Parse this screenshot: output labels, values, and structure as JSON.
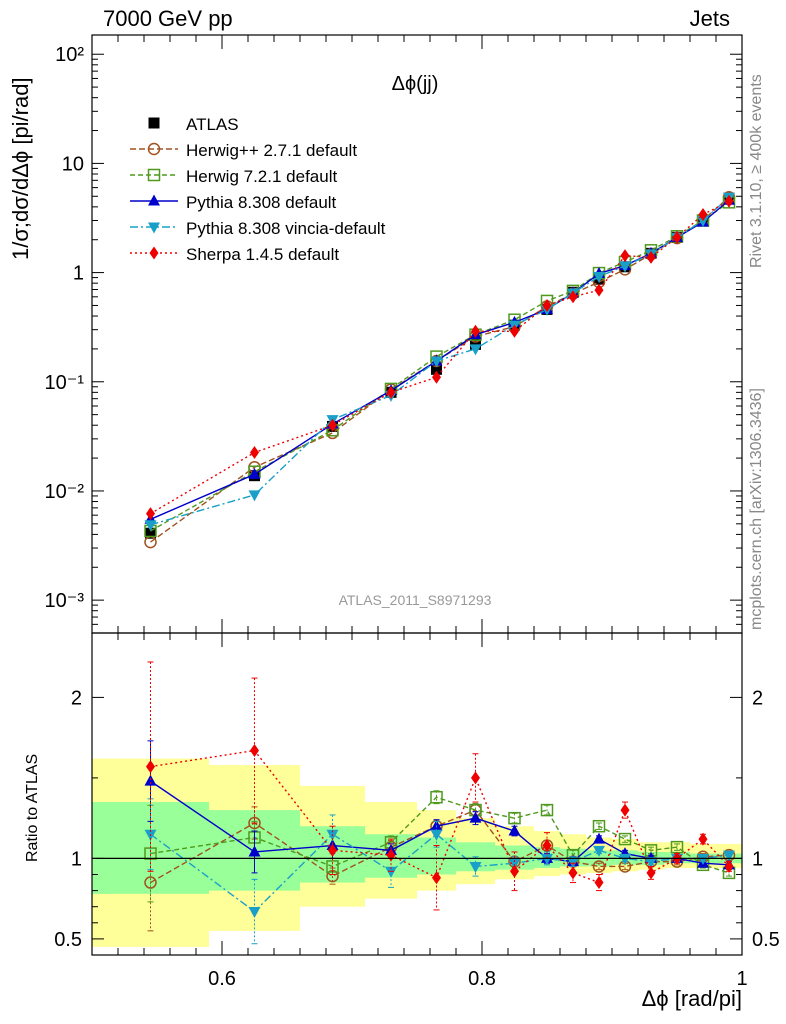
{
  "header": {
    "left": "7000 GeV pp",
    "right": "Jets"
  },
  "side_labels": {
    "top": "Rivet 3.1.10, ≥ 400k events",
    "bottom": "mcplots.cern.ch [arXiv:1306.3436]"
  },
  "chart_data": {
    "type": "line",
    "title": "Δϕ(jj)",
    "watermark": "ATLAS_2011_S8971293",
    "xlabel": "Δϕ [rad/pi]",
    "ylabel": "1/σ;dσ/dΔϕ [pi/rad]",
    "ratio_ylabel": "Ratio to ATLAS",
    "x_ticks": [
      "0.6",
      "0.8",
      "1"
    ],
    "y_ticks": [
      "10⁻³",
      "10⁻²",
      "10⁻¹",
      "1",
      "10",
      "10²"
    ],
    "ratio_ticks": [
      "0.5",
      "1",
      "2"
    ],
    "xlim": [
      0.5,
      1.0
    ],
    "ylim": [
      0.0005,
      150
    ],
    "yscale": "log",
    "ratio_ylim": [
      0.4,
      2.4
    ],
    "legend_position": "top-left",
    "x": [
      0.545,
      0.625,
      0.685,
      0.73,
      0.765,
      0.795,
      0.825,
      0.85,
      0.87,
      0.89,
      0.91,
      0.93,
      0.95,
      0.97,
      0.99
    ],
    "data_band": {
      "x_edges": [
        0.5,
        0.59,
        0.66,
        0.71,
        0.75,
        0.78,
        0.81,
        0.84,
        0.86,
        0.88,
        0.9,
        0.92,
        0.94,
        0.96,
        0.98,
        1.0
      ],
      "stat_lo": [
        0.78,
        0.8,
        0.85,
        0.88,
        0.9,
        0.92,
        0.93,
        0.94,
        0.95,
        0.95,
        0.96,
        0.96,
        0.97,
        0.97,
        0.97
      ],
      "stat_hi": [
        1.35,
        1.3,
        1.2,
        1.15,
        1.13,
        1.1,
        1.08,
        1.07,
        1.06,
        1.05,
        1.05,
        1.04,
        1.04,
        1.03,
        1.03
      ],
      "tot_lo": [
        0.45,
        0.55,
        0.7,
        0.75,
        0.8,
        0.84,
        0.87,
        0.89,
        0.9,
        0.91,
        0.92,
        0.93,
        0.94,
        0.94,
        0.94
      ],
      "tot_hi": [
        1.62,
        1.58,
        1.45,
        1.35,
        1.3,
        1.25,
        1.2,
        1.17,
        1.15,
        1.13,
        1.12,
        1.1,
        1.1,
        1.09,
        1.09
      ]
    },
    "series": [
      {
        "name": "ATLAS",
        "color": "#000000",
        "marker": "square-filled",
        "dash": "none",
        "values": [
          0.0041,
          0.0138,
          0.039,
          0.08,
          0.13,
          0.22,
          0.33,
          0.46,
          0.66,
          0.87,
          1.13,
          1.5,
          2.1,
          3.0,
          4.8
        ],
        "ratio": [
          1,
          1,
          1,
          1,
          1,
          1,
          1,
          1,
          1,
          1,
          1,
          1,
          1,
          1,
          1
        ],
        "ratio_err": [
          0,
          0,
          0,
          0,
          0,
          0,
          0,
          0,
          0,
          0,
          0,
          0,
          0,
          0,
          0
        ]
      },
      {
        "name": "Herwig++ 2.7.1 default",
        "color": "#a0521e",
        "marker": "circle-open",
        "dash": "6,3",
        "values": [
          0.0034,
          0.0165,
          0.034,
          0.085,
          0.155,
          0.26,
          0.32,
          0.49,
          0.64,
          0.82,
          1.07,
          1.47,
          2.07,
          3.03,
          4.9
        ],
        "ratio": [
          0.85,
          1.22,
          0.89,
          1.07,
          1.2,
          1.3,
          0.98,
          1.08,
          0.98,
          0.95,
          0.95,
          0.98,
          0.98,
          1.01,
          1.02
        ],
        "ratio_err": [
          0.3,
          0.1,
          0.05,
          0.04,
          0.04,
          0.04,
          0.03,
          0.03,
          0.03,
          0.02,
          0.02,
          0.02,
          0.02,
          0.02,
          0.02
        ]
      },
      {
        "name": "Herwig 7.2.1 default",
        "color": "#4f9a1e",
        "marker": "square-open",
        "dash": "5,3",
        "values": [
          0.0043,
          0.015,
          0.036,
          0.086,
          0.17,
          0.27,
          0.37,
          0.55,
          0.68,
          0.99,
          1.25,
          1.6,
          2.15,
          3.0,
          4.4
        ],
        "ratio": [
          1.03,
          1.13,
          0.95,
          1.1,
          1.38,
          1.3,
          1.25,
          1.3,
          1.02,
          1.2,
          1.12,
          1.05,
          1.07,
          0.96,
          0.91
        ],
        "ratio_err": [
          0.3,
          0.1,
          0.05,
          0.04,
          0.04,
          0.04,
          0.03,
          0.03,
          0.03,
          0.02,
          0.02,
          0.02,
          0.02,
          0.02,
          0.02
        ]
      },
      {
        "name": "Pythia 8.308 default",
        "color": "#0000cc",
        "marker": "triangle-up",
        "dash": "none",
        "values": [
          0.0055,
          0.0142,
          0.041,
          0.083,
          0.155,
          0.27,
          0.35,
          0.46,
          0.65,
          0.98,
          1.16,
          1.5,
          2.1,
          2.9,
          4.6
        ],
        "ratio": [
          1.48,
          1.04,
          1.08,
          1.05,
          1.2,
          1.25,
          1.17,
          1.0,
          0.98,
          1.12,
          1.03,
          1.0,
          1.0,
          0.97,
          0.96
        ],
        "ratio_err": [
          0.25,
          0.13,
          0.08,
          0.04,
          0.04,
          0.04,
          0.03,
          0.03,
          0.03,
          0.02,
          0.02,
          0.02,
          0.02,
          0.02,
          0.02
        ]
      },
      {
        "name": "Pythia 8.308 vincia-default",
        "color": "#1aa0c8",
        "marker": "triangle-down",
        "dash": "8,3,2,3",
        "values": [
          0.0049,
          0.0092,
          0.045,
          0.075,
          0.155,
          0.2,
          0.33,
          0.46,
          0.65,
          0.92,
          1.15,
          1.48,
          2.1,
          3.0,
          4.9
        ],
        "ratio": [
          1.15,
          0.67,
          1.15,
          0.92,
          1.15,
          0.95,
          0.97,
          1.0,
          0.98,
          1.05,
          1.0,
          0.98,
          1.0,
          1.0,
          1.02
        ],
        "ratio_err": [
          0.22,
          0.2,
          0.12,
          0.1,
          0.08,
          0.06,
          0.04,
          0.04,
          0.03,
          0.02,
          0.02,
          0.02,
          0.02,
          0.02,
          0.02
        ]
      },
      {
        "name": "Sherpa 1.4.5 default",
        "color": "#ee0000",
        "marker": "diamond-filled",
        "dash": "2,3",
        "values": [
          0.0062,
          0.0225,
          0.04,
          0.08,
          0.11,
          0.29,
          0.29,
          0.5,
          0.6,
          0.69,
          1.43,
          1.38,
          2.1,
          3.4,
          4.5
        ],
        "ratio": [
          1.57,
          1.67,
          1.05,
          1.02,
          0.88,
          1.5,
          0.92,
          1.08,
          0.91,
          0.85,
          1.3,
          0.91,
          1.0,
          1.12,
          0.95
        ],
        "ratio_err": [
          0.65,
          0.45,
          0.15,
          0.1,
          0.2,
          0.15,
          0.12,
          0.08,
          0.06,
          0.05,
          0.05,
          0.04,
          0.03,
          0.03,
          0.03
        ]
      }
    ]
  }
}
